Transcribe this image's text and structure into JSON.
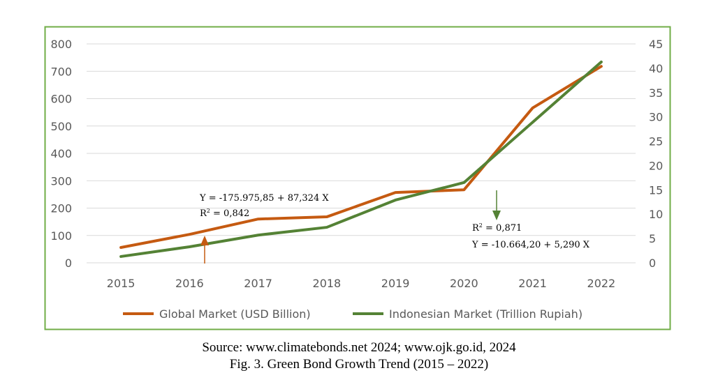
{
  "chart_data": {
    "type": "line",
    "categories": [
      "2015",
      "2016",
      "2017",
      "2018",
      "2019",
      "2020",
      "2021",
      "2022"
    ],
    "series": [
      {
        "name": "Global Market (USD Billion)",
        "axis": "left",
        "color": "#c55a11",
        "values": [
          56,
          104,
          160,
          168,
          257,
          267,
          566,
          718
        ]
      },
      {
        "name": "Indonesian Market (Trillion Rupiah)",
        "axis": "right",
        "color": "#548235",
        "values": [
          1.3,
          3.3,
          5.7,
          7.3,
          12.9,
          16.5,
          28.9,
          41.3
        ]
      }
    ],
    "left_axis": {
      "ylim": [
        0,
        800
      ],
      "ticks": [
        "0",
        "100",
        "200",
        "300",
        "400",
        "500",
        "600",
        "700",
        "800"
      ]
    },
    "right_axis": {
      "ylim": [
        0,
        45
      ],
      "ticks": [
        "0",
        "5",
        "10",
        "15",
        "20",
        "25",
        "30",
        "35",
        "40",
        "45"
      ]
    },
    "grid": true,
    "legend": "bottom",
    "frame_color": "#70ad47",
    "annotations": [
      {
        "series": "Global Market (USD Billion)",
        "equation": "Y = -175.975,85 + 87,324 X",
        "r2_label": "R",
        "r2_sup": "2",
        "r2_value": " = 0,842"
      },
      {
        "series": "Indonesian Market (Trillion Rupiah)",
        "equation": "Y = -10.664,20 + 5,290 X",
        "r2_label": "R",
        "r2_sup": "2",
        "r2_value": " = 0,871"
      }
    ]
  },
  "caption": {
    "source": "Source: www.climatebonds.net 2024; www.ojk.go.id, 2024",
    "figure": "Fig. 3. Green Bond Growth Trend (2015 – 2022)"
  }
}
